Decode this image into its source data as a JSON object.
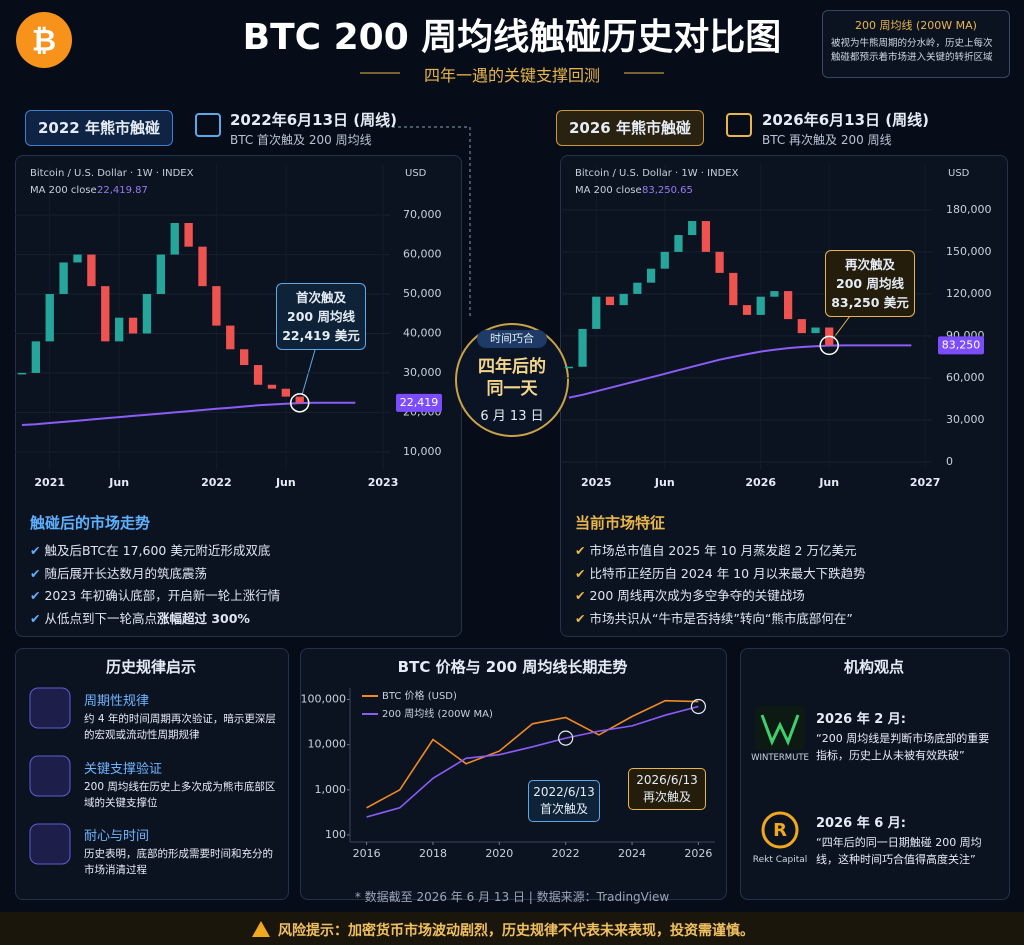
{
  "header": {
    "title": "BTC 200 周均线触碰历史对比图",
    "subtitle": "四年一遇的关键支撑回测",
    "legend_title": "200 周均线 (200W MA)",
    "legend_text": "被视为牛熊周期的分水岭，历史上每次触碰都预示着市场进入关键的转折区域"
  },
  "panels": [
    {
      "badge": "2022 年熊市触碰",
      "date": "2022年6月13日 (周线)",
      "caption": "BTC 首次触及 200 周均线",
      "section_title": "触碰后的市场走势",
      "bullets": [
        {
          "text": "触及后BTC在 17,600 美元附近形成双底"
        },
        {
          "text": "随后展开长达数月的筑底震荡"
        },
        {
          "text": "2023 年初确认底部，开启新一轮上涨行情"
        },
        {
          "text": "从低点到下一轮高点",
          "strong": "涨幅超过 300%"
        }
      ]
    },
    {
      "badge": "2026 年熊市触碰",
      "date": "2026年6月13日 (周线)",
      "caption": "BTC 再次触及 200 周线",
      "section_title": "当前市场特征",
      "bullets": [
        {
          "text": "市场总市值自 2025 年 10 月蒸发超 2 万亿美元"
        },
        {
          "text": "比特币正经历自 2024 年 10 月以来最大下跌趋势"
        },
        {
          "text": "200 周线再次成为多空争夺的关键战场"
        },
        {
          "text": "市场共识从“牛市是否持续”转向“熊市底部何在”"
        }
      ]
    }
  ],
  "coincidence": {
    "tag": "时间巧合",
    "lines": [
      "四年后的",
      "同一天"
    ],
    "date": "6 月 13 日"
  },
  "chart_data": [
    {
      "type": "candlestick",
      "source": "Bitcoin / U.S. Dollar · 1W · INDEX",
      "ma_label": "MA 200 close",
      "ma_value": "22,419.87",
      "unit": "USD",
      "categories": [
        null,
        null,
        "2021",
        null,
        null,
        null,
        null,
        "Jun",
        null,
        null,
        null,
        null,
        null,
        null,
        "2022",
        null,
        null,
        null,
        null,
        "Jun",
        null,
        null,
        null,
        null,
        null,
        null,
        "2023"
      ],
      "series": [
        {
          "up_color": "#26a69a",
          "down_color": "#ef5350",
          "values": [
            30000,
            38000,
            50000,
            58000,
            60000,
            52000,
            38000,
            44000,
            40000,
            50000,
            60000,
            68000,
            62000,
            52000,
            42000,
            36000,
            32000,
            27000,
            26000,
            24000,
            22419,
            null,
            null,
            null,
            null,
            null,
            null
          ]
        },
        {
          "color": "#8b5cf6",
          "values": [
            16800,
            17000,
            17300,
            17600,
            17900,
            18200,
            18500,
            18800,
            19100,
            19400,
            19700,
            20000,
            20300,
            20600,
            20900,
            21200,
            21500,
            21800,
            22000,
            22200,
            22350,
            22419,
            22419,
            22419,
            22419,
            null,
            null
          ]
        }
      ],
      "ylim": [
        5400,
        82700
      ],
      "yticks": [
        {
          "value": 10000,
          "label": "10,000"
        },
        {
          "value": 20000,
          "label": "20,000"
        },
        {
          "value": 30000,
          "label": "30,000"
        },
        {
          "value": 40000,
          "label": "40,000"
        },
        {
          "value": 50000,
          "label": "50,000"
        },
        {
          "value": 60000,
          "label": "60,000"
        },
        {
          "value": 70000,
          "label": "70,000"
        }
      ],
      "grid": true,
      "callout": [
        "首次触及",
        "200 周均线",
        "22,419 美元"
      ],
      "price_tag": "22,419"
    },
    {
      "type": "candlestick",
      "source": "Bitcoin / U.S. Dollar · 1W · INDEX",
      "ma_label": "MA 200 close",
      "ma_value": "83,250.65",
      "unit": "USD",
      "categories": [
        null,
        null,
        "2025",
        null,
        null,
        null,
        null,
        "Jun",
        null,
        null,
        null,
        null,
        null,
        null,
        "2026",
        null,
        null,
        null,
        null,
        "Jun",
        null,
        null,
        null,
        null,
        null,
        null,
        "2027"
      ],
      "series": [
        {
          "up_color": "#26a69a",
          "down_color": "#ef5350",
          "values": [
            68000,
            95000,
            118000,
            112000,
            120000,
            128000,
            138000,
            150000,
            162000,
            172000,
            150000,
            135000,
            112000,
            105000,
            118000,
            122000,
            102000,
            92000,
            96000,
            83250,
            null,
            null,
            null,
            null,
            null,
            null,
            null
          ]
        },
        {
          "color": "#8b5cf6",
          "values": [
            46000,
            48000,
            50500,
            53000,
            55500,
            58000,
            60500,
            63000,
            65500,
            68000,
            70500,
            73000,
            75000,
            77000,
            78800,
            80200,
            81300,
            82100,
            82700,
            83100,
            83250,
            83250,
            83250,
            83250,
            83250,
            83250,
            null
          ]
        }
      ],
      "ylim": [
        -5700,
        212000
      ],
      "yticks": [
        0,
        {
          "value": 30000,
          "label": "30,000"
        },
        {
          "value": 60000,
          "label": "60,000"
        },
        {
          "value": 90000,
          "label": "90,000"
        },
        {
          "value": 120000,
          "label": "120,000"
        },
        {
          "value": 150000,
          "label": "150,000"
        },
        {
          "value": 180000,
          "label": "180,000"
        }
      ],
      "grid": true,
      "callout": [
        "再次触及",
        "200 周均线",
        "83,250 美元"
      ],
      "price_tag": "83,250"
    },
    {
      "type": "line",
      "title": "BTC 价格与 200 周均线长期走势",
      "log_scale": true,
      "grid": false,
      "x": [
        2016,
        2017,
        2018,
        2019,
        2020,
        2021,
        2022,
        2023,
        2024,
        2025,
        2026
      ],
      "series": [
        {
          "name": "BTC 价格 (USD)",
          "color": "#f08a24",
          "values": [
            400,
            1000,
            13000,
            3800,
            7200,
            29000,
            40000,
            16500,
            42000,
            94000,
            90000
          ]
        },
        {
          "name": "200 周均线 (200W MA)",
          "color": "#8b5cf6",
          "values": [
            250,
            400,
            1800,
            5000,
            6000,
            9000,
            14000,
            20000,
            26000,
            45000,
            70000
          ]
        }
      ],
      "xlim": [
        2015.5,
        2026.5
      ],
      "xticks": [
        2016,
        2018,
        2020,
        2022,
        2024,
        2026
      ],
      "ylim": [
        70,
        180000
      ],
      "yticks": [
        100,
        {
          "value": 1000,
          "label": "1,000"
        },
        {
          "value": 10000,
          "label": "10,000"
        },
        {
          "value": 100000,
          "label": "100,000"
        }
      ],
      "annotations": [
        {
          "date": "2022/6/13",
          "text": "首次触及"
        },
        {
          "date": "2026/6/13",
          "text": "再次触及"
        }
      ]
    }
  ],
  "insights": {
    "title": "历史规律启示",
    "items": [
      {
        "title": "周期性规律",
        "text": "约 4 年的时间周期再次验证，暗示更深层的宏观或流动性周期规律"
      },
      {
        "title": "关键支撑验证",
        "text": "200 周均线在历史上多次成为熊市底部区域的关键支撑位"
      },
      {
        "title": "耐心与时间",
        "text": "历史表明，底部的形成需要时间和充分的市场消清过程"
      }
    ]
  },
  "views": {
    "title": "机构观点",
    "items": [
      {
        "date": "2026 年 2 月:",
        "quote": "“200 周均线是判断市场底部的重要指标，历史上从未被有效跌破”",
        "org": "WINTERMUTE"
      },
      {
        "date": "2026 年 6 月:",
        "quote": "“四年后的同一日期触碰 200 周均线，这种时间巧合值得高度关注”",
        "org": "Rekt Capital"
      }
    ]
  },
  "footer": {
    "note": "* 数据截至 2026 年 6 月 13 日 | 数据来源：TradingView",
    "warning": "风险提示：加密货币市场波动剧烈，历史规律不代表未来表现，投资需谨慎。"
  }
}
